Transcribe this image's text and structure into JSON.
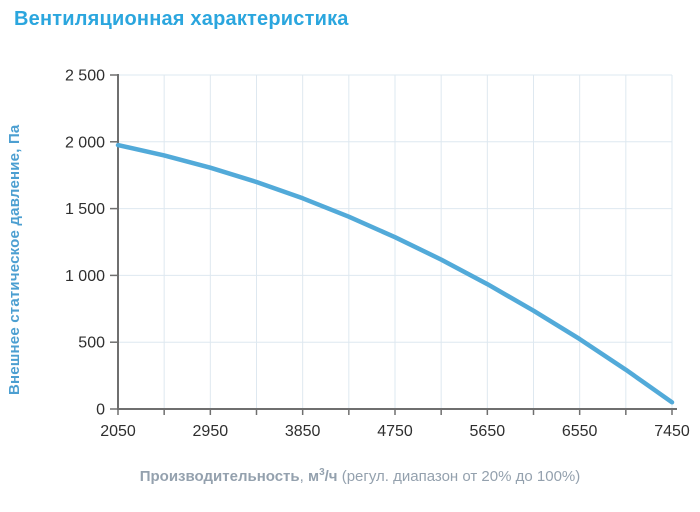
{
  "page": {
    "title": "Вентиляционная характеристика"
  },
  "colors": {
    "title": "#2BA6DE",
    "curve": "#52AAD9",
    "grid": "#DEE8F0",
    "axis": "#6F6F6F",
    "tick_text": "#2F2F2F",
    "y_axis_title": "#4C9FD1",
    "x_axis_title": "#94A1AE"
  },
  "chart_data": {
    "type": "line",
    "title": "Вентиляционная характеристика",
    "ylabel": "Внешнее статическое давление, Па",
    "xlabel_parts": {
      "main": "Производительность",
      "separator": ", ",
      "unit_numerator": "м",
      "unit_sup": "3",
      "unit_rest": "/ч",
      "range_note": " (регул. диапазон от 20% до 100%)"
    },
    "xlim": [
      2050,
      7450
    ],
    "ylim": [
      0,
      2500
    ],
    "x_minor_step": 450,
    "x_major_ticks": [
      {
        "v": 2050,
        "label": "2050"
      },
      {
        "v": 2950,
        "label": "2950"
      },
      {
        "v": 3850,
        "label": "3850"
      },
      {
        "v": 4750,
        "label": "4750"
      },
      {
        "v": 5650,
        "label": "5650"
      },
      {
        "v": 6550,
        "label": "6550"
      },
      {
        "v": 7450,
        "label": "7450"
      }
    ],
    "y_ticks": [
      {
        "v": 0,
        "label": "0"
      },
      {
        "v": 500,
        "label": "500"
      },
      {
        "v": 1000,
        "label": "1 000"
      },
      {
        "v": 1500,
        "label": "1 500"
      },
      {
        "v": 2000,
        "label": "2 000"
      },
      {
        "v": 2500,
        "label": "2 500"
      }
    ],
    "grid": true,
    "legend": false,
    "series": [
      {
        "name": "Вентиляционная характеристика",
        "x": [
          2050,
          2500,
          2950,
          3400,
          3850,
          4300,
          4750,
          5200,
          5650,
          6100,
          6550,
          7000,
          7450
        ],
        "y": [
          1975,
          1898,
          1806,
          1699,
          1577,
          1439,
          1286,
          1118,
          935,
          736,
          523,
          294,
          50
        ]
      }
    ]
  }
}
